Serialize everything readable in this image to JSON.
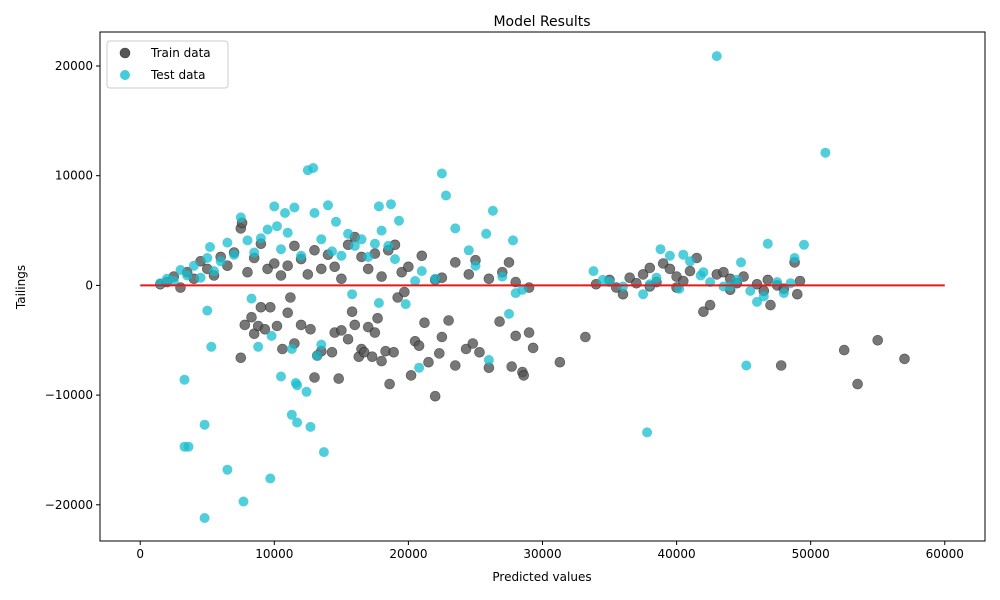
{
  "chart_data": {
    "type": "scatter",
    "title": "Model Results",
    "xlabel": "Predicted values",
    "ylabel": "Tailings",
    "xlim": [
      -3000,
      63000
    ],
    "ylim": [
      -23300,
      23100
    ],
    "xticks": [
      0,
      10000,
      20000,
      30000,
      40000,
      50000,
      60000
    ],
    "xtick_labels": [
      "0",
      "10000",
      "20000",
      "30000",
      "40000",
      "50000",
      "60000"
    ],
    "yticks": [
      -20000,
      -10000,
      0,
      10000,
      20000
    ],
    "ytick_labels": [
      "−20000",
      "−10000",
      "0",
      "10000",
      "20000"
    ],
    "grid": false,
    "legend_position": "top-left",
    "reference_line": {
      "x": [
        0,
        60000
      ],
      "y": [
        0,
        0
      ],
      "color": "#e31a1c"
    },
    "series": [
      {
        "name": "Train data",
        "color": "#555555",
        "points": [
          [
            1500,
            100
          ],
          [
            2000,
            300
          ],
          [
            2500,
            800
          ],
          [
            3000,
            -200
          ],
          [
            3500,
            1200
          ],
          [
            4000,
            600
          ],
          [
            4500,
            2200
          ],
          [
            5000,
            1500
          ],
          [
            5500,
            900
          ],
          [
            6000,
            2600
          ],
          [
            6500,
            1800
          ],
          [
            7000,
            3000
          ],
          [
            7500,
            5200
          ],
          [
            7600,
            5700
          ],
          [
            8000,
            1200
          ],
          [
            8500,
            2500
          ],
          [
            9000,
            3800
          ],
          [
            9500,
            1500
          ],
          [
            10000,
            2000
          ],
          [
            10500,
            900
          ],
          [
            11000,
            1800
          ],
          [
            11500,
            3600
          ],
          [
            12000,
            2400
          ],
          [
            12500,
            1000
          ],
          [
            13000,
            3200
          ],
          [
            13500,
            1500
          ],
          [
            14000,
            2800
          ],
          [
            14500,
            1700
          ],
          [
            15000,
            600
          ],
          [
            15500,
            3700
          ],
          [
            16000,
            4400
          ],
          [
            16500,
            2600
          ],
          [
            17000,
            1500
          ],
          [
            17500,
            2900
          ],
          [
            18000,
            800
          ],
          [
            18500,
            3200
          ],
          [
            19000,
            3700
          ],
          [
            19500,
            1200
          ],
          [
            20000,
            1700
          ],
          [
            21000,
            2700
          ],
          [
            22000,
            500
          ],
          [
            22500,
            700
          ],
          [
            23500,
            2100
          ],
          [
            24500,
            1000
          ],
          [
            25000,
            2300
          ],
          [
            26000,
            600
          ],
          [
            27000,
            1200
          ],
          [
            27500,
            2100
          ],
          [
            28000,
            300
          ],
          [
            29000,
            -200
          ],
          [
            7500,
            -6600
          ],
          [
            7800,
            -3600
          ],
          [
            8300,
            -2900
          ],
          [
            8500,
            -4400
          ],
          [
            8800,
            -3700
          ],
          [
            9000,
            -2000
          ],
          [
            9300,
            -4000
          ],
          [
            9700,
            -2000
          ],
          [
            10200,
            -3700
          ],
          [
            10600,
            -5800
          ],
          [
            11000,
            -2500
          ],
          [
            11200,
            -1100
          ],
          [
            11500,
            -5300
          ],
          [
            12000,
            -3600
          ],
          [
            12700,
            -4000
          ],
          [
            13000,
            -8400
          ],
          [
            13200,
            -6400
          ],
          [
            13500,
            -6000
          ],
          [
            14300,
            -6100
          ],
          [
            14500,
            -4300
          ],
          [
            14800,
            -8500
          ],
          [
            15000,
            -4100
          ],
          [
            15500,
            -4900
          ],
          [
            15800,
            -2400
          ],
          [
            16000,
            -3600
          ],
          [
            16300,
            -6500
          ],
          [
            16500,
            -5800
          ],
          [
            16700,
            -6100
          ],
          [
            17000,
            -3800
          ],
          [
            17300,
            -6500
          ],
          [
            17500,
            -4300
          ],
          [
            17700,
            -3000
          ],
          [
            18000,
            -6900
          ],
          [
            18300,
            -6000
          ],
          [
            18600,
            -9000
          ],
          [
            18900,
            -6100
          ],
          [
            19200,
            -1100
          ],
          [
            19700,
            -600
          ],
          [
            20200,
            -8200
          ],
          [
            20500,
            -5100
          ],
          [
            20800,
            -5500
          ],
          [
            21200,
            -3400
          ],
          [
            21500,
            -7000
          ],
          [
            22000,
            -10100
          ],
          [
            22300,
            -6200
          ],
          [
            22500,
            -4700
          ],
          [
            23000,
            -3200
          ],
          [
            23500,
            -7300
          ],
          [
            24300,
            -5800
          ],
          [
            24800,
            -5300
          ],
          [
            25300,
            -6100
          ],
          [
            26000,
            -7500
          ],
          [
            26800,
            -3300
          ],
          [
            27700,
            -7400
          ],
          [
            28000,
            -4600
          ],
          [
            28500,
            -7900
          ],
          [
            28600,
            -8200
          ],
          [
            29000,
            -4300
          ],
          [
            29300,
            -5700
          ],
          [
            31300,
            -7000
          ],
          [
            33200,
            -4700
          ],
          [
            34000,
            100
          ],
          [
            35000,
            500
          ],
          [
            35500,
            -200
          ],
          [
            36000,
            -800
          ],
          [
            36500,
            700
          ],
          [
            37000,
            200
          ],
          [
            37500,
            1000
          ],
          [
            38000,
            1600
          ],
          [
            38500,
            300
          ],
          [
            39000,
            2000
          ],
          [
            39500,
            1500
          ],
          [
            40000,
            800
          ],
          [
            40500,
            400
          ],
          [
            41000,
            1300
          ],
          [
            41500,
            2500
          ],
          [
            42000,
            -2400
          ],
          [
            42500,
            -1800
          ],
          [
            43000,
            1000
          ],
          [
            43500,
            1200
          ],
          [
            44000,
            600
          ],
          [
            44500,
            200
          ],
          [
            45000,
            800
          ],
          [
            46000,
            100
          ],
          [
            46500,
            -500
          ],
          [
            46800,
            500
          ],
          [
            47000,
            -1800
          ],
          [
            47500,
            0
          ],
          [
            48000,
            -300
          ],
          [
            48800,
            2100
          ],
          [
            49000,
            -800
          ],
          [
            49200,
            400
          ],
          [
            52500,
            -5900
          ],
          [
            53500,
            -9000
          ],
          [
            55000,
            -5000
          ],
          [
            57000,
            -6700
          ],
          [
            38000,
            -100
          ],
          [
            40000,
            -200
          ],
          [
            44000,
            -400
          ],
          [
            47800,
            -7300
          ]
        ]
      },
      {
        "name": "Test data",
        "color": "#17becf",
        "points": [
          [
            1500,
            200
          ],
          [
            2000,
            600
          ],
          [
            2500,
            400
          ],
          [
            3000,
            1400
          ],
          [
            3500,
            900
          ],
          [
            4000,
            1800
          ],
          [
            4500,
            700
          ],
          [
            5000,
            2500
          ],
          [
            5200,
            3500
          ],
          [
            5500,
            1300
          ],
          [
            6000,
            2200
          ],
          [
            6500,
            3900
          ],
          [
            7000,
            2800
          ],
          [
            7500,
            6200
          ],
          [
            8000,
            4100
          ],
          [
            8500,
            3000
          ],
          [
            9000,
            4300
          ],
          [
            9500,
            5100
          ],
          [
            10000,
            7200
          ],
          [
            10200,
            5400
          ],
          [
            10500,
            3300
          ],
          [
            10800,
            6600
          ],
          [
            11000,
            4800
          ],
          [
            11500,
            7100
          ],
          [
            12000,
            2700
          ],
          [
            12500,
            10500
          ],
          [
            12900,
            10700
          ],
          [
            13000,
            6600
          ],
          [
            13500,
            4200
          ],
          [
            14000,
            7300
          ],
          [
            14300,
            3100
          ],
          [
            14600,
            5800
          ],
          [
            15000,
            2700
          ],
          [
            15500,
            4700
          ],
          [
            16000,
            3600
          ],
          [
            16500,
            4200
          ],
          [
            17000,
            2600
          ],
          [
            17500,
            3800
          ],
          [
            17800,
            7200
          ],
          [
            18000,
            5000
          ],
          [
            18500,
            3600
          ],
          [
            18700,
            7400
          ],
          [
            19000,
            2400
          ],
          [
            19300,
            5900
          ],
          [
            19800,
            -1700
          ],
          [
            20500,
            400
          ],
          [
            21000,
            1300
          ],
          [
            22000,
            600
          ],
          [
            22500,
            10200
          ],
          [
            22800,
            8200
          ],
          [
            23500,
            5200
          ],
          [
            24500,
            3200
          ],
          [
            25000,
            1800
          ],
          [
            25800,
            4700
          ],
          [
            26300,
            6800
          ],
          [
            27000,
            800
          ],
          [
            27800,
            4100
          ],
          [
            28000,
            -700
          ],
          [
            28500,
            -400
          ],
          [
            27500,
            -2600
          ],
          [
            3300,
            -8600
          ],
          [
            3300,
            -14700
          ],
          [
            3600,
            -14700
          ],
          [
            4800,
            -12700
          ],
          [
            4800,
            -21200
          ],
          [
            5000,
            -2300
          ],
          [
            5300,
            -5600
          ],
          [
            6500,
            -16800
          ],
          [
            7700,
            -19700
          ],
          [
            8300,
            -1200
          ],
          [
            8800,
            -5600
          ],
          [
            9700,
            -17600
          ],
          [
            9800,
            -4600
          ],
          [
            10500,
            -8300
          ],
          [
            11300,
            -5800
          ],
          [
            11300,
            -11800
          ],
          [
            11600,
            -8900
          ],
          [
            11700,
            -12500
          ],
          [
            11700,
            -9100
          ],
          [
            12400,
            -9700
          ],
          [
            12700,
            -12900
          ],
          [
            13200,
            -6400
          ],
          [
            13500,
            -5400
          ],
          [
            13700,
            -15200
          ],
          [
            15800,
            -800
          ],
          [
            17800,
            -1600
          ],
          [
            20800,
            -7500
          ],
          [
            26000,
            -6800
          ],
          [
            33800,
            1300
          ],
          [
            34500,
            500
          ],
          [
            35000,
            300
          ],
          [
            36000,
            -100
          ],
          [
            37500,
            -800
          ],
          [
            37800,
            -13400
          ],
          [
            38500,
            700
          ],
          [
            38800,
            3300
          ],
          [
            39500,
            2700
          ],
          [
            40500,
            2800
          ],
          [
            41000,
            2200
          ],
          [
            41800,
            900
          ],
          [
            42500,
            300
          ],
          [
            43000,
            20900
          ],
          [
            43500,
            -100
          ],
          [
            44500,
            500
          ],
          [
            44800,
            2100
          ],
          [
            45200,
            -7300
          ],
          [
            45500,
            -500
          ],
          [
            46000,
            -1500
          ],
          [
            46500,
            -1000
          ],
          [
            46800,
            3800
          ],
          [
            47500,
            300
          ],
          [
            48000,
            -700
          ],
          [
            48500,
            200
          ],
          [
            48800,
            2500
          ],
          [
            49500,
            3700
          ],
          [
            51100,
            12100
          ],
          [
            38000,
            100
          ],
          [
            40200,
            -300
          ],
          [
            42000,
            1200
          ],
          [
            44000,
            -100
          ]
        ]
      }
    ]
  }
}
